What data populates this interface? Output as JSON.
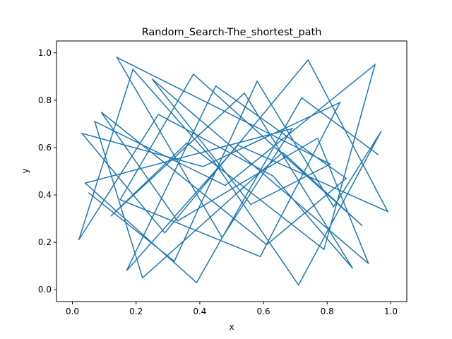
{
  "chart_data": {
    "type": "line",
    "title": "Random_Search-The_shortest_path",
    "xlabel": "x",
    "ylabel": "y",
    "xlim": [
      -0.05,
      1.05
    ],
    "ylim": [
      -0.05,
      1.05
    ],
    "xticks": [
      0.0,
      0.2,
      0.4,
      0.6,
      0.8,
      1.0
    ],
    "yticks": [
      0.0,
      0.2,
      0.4,
      0.6,
      0.8,
      1.0
    ],
    "xtick_labels": [
      "0.0",
      "0.2",
      "0.4",
      "0.6",
      "0.8",
      "1.0"
    ],
    "ytick_labels": [
      "0.0",
      "0.2",
      "0.4",
      "0.6",
      "0.8",
      "1.0"
    ],
    "grid": false,
    "legend": "none",
    "series": [
      {
        "color": "#1f77b4",
        "x": [
          0.05,
          0.32,
          0.58,
          0.82,
          0.97,
          0.71,
          0.44,
          0.19,
          0.02,
          0.27,
          0.63,
          0.88,
          0.54,
          0.12,
          0.36,
          0.79,
          0.95,
          0.48,
          0.07,
          0.22,
          0.66,
          0.91,
          0.38,
          0.15,
          0.59,
          0.84,
          0.41,
          0.03,
          0.29,
          0.74,
          0.99,
          0.52,
          0.17,
          0.45,
          0.86,
          0.61,
          0.09,
          0.33,
          0.77,
          0.93,
          0.25,
          0.56,
          0.81,
          0.14,
          0.47,
          0.69,
          0.04,
          0.39,
          0.72,
          0.96
        ],
        "y": [
          0.41,
          0.12,
          0.88,
          0.35,
          0.67,
          0.02,
          0.55,
          0.93,
          0.21,
          0.74,
          0.48,
          0.09,
          0.83,
          0.31,
          0.62,
          0.17,
          0.95,
          0.44,
          0.71,
          0.05,
          0.58,
          0.27,
          0.91,
          0.38,
          0.14,
          0.79,
          0.52,
          0.66,
          0.24,
          0.97,
          0.33,
          0.61,
          0.08,
          0.86,
          0.47,
          0.19,
          0.75,
          0.29,
          0.64,
          0.11,
          0.89,
          0.36,
          0.53,
          0.98,
          0.22,
          0.68,
          0.45,
          0.03,
          0.81,
          0.57
        ]
      }
    ]
  }
}
